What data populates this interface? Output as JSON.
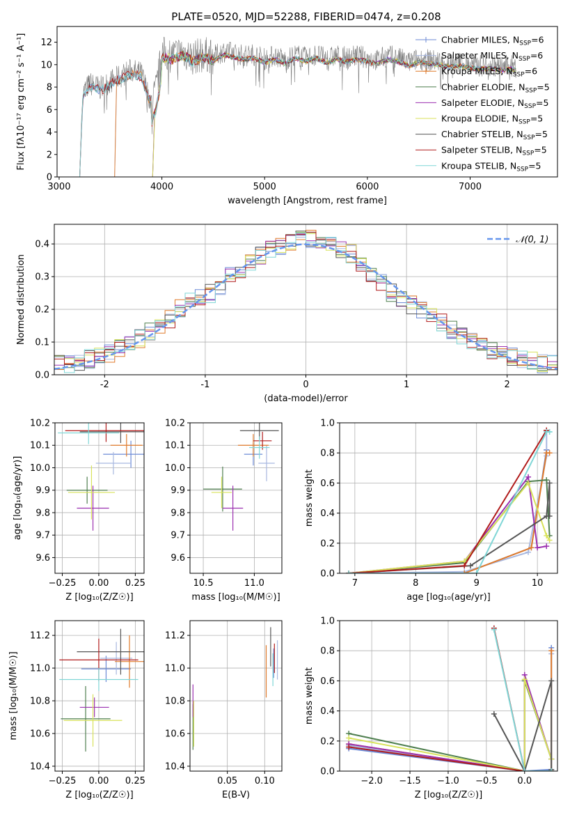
{
  "figure": {
    "title": "PLATE=0520, MJD=52288, FIBERID=0474, z=0.208"
  },
  "colors": {
    "Chabrier MILES": "#6b8ad6",
    "Salpeter MILES": "#a8b8e0",
    "Kroupa MILES": "#e07a2a",
    "Chabrier ELODIE": "#4f7f4f",
    "Salpeter ELODIE": "#9b30b0",
    "Kroupa ELODIE": "#d8e25a",
    "Chabrier STELIB": "#555555",
    "Salpeter STELIB": "#b01a1a",
    "Kroupa STELIB": "#7fd6d6",
    "gauss": "#6495ed",
    "grid": "#b0b0b0"
  },
  "chart_data": [
    {
      "id": "spectrum",
      "type": "line",
      "xlabel": "wavelength [Angstrom, rest frame]",
      "ylabel": "Flux [fλ10⁻¹⁷ erg cm⁻² s⁻¹ A⁻¹]",
      "xlim": [
        2980,
        7850
      ],
      "ylim": [
        0,
        13.4
      ],
      "xticks": [
        3000,
        4000,
        5000,
        6000,
        7000
      ],
      "yticks": [
        0,
        2,
        4,
        6,
        8,
        10,
        12
      ],
      "grid": false,
      "legend": "right",
      "observed": {
        "x": [
          3200,
          3230,
          3300,
          3400,
          3500,
          3600,
          3700,
          3800,
          3900,
          3950,
          4000,
          4100,
          4200,
          4300,
          4400,
          4500,
          4600,
          4700,
          4800,
          4900,
          5000,
          5100,
          5200,
          5300,
          5400,
          5500,
          5600,
          5700,
          5800,
          5900,
          6000,
          6100,
          6200,
          6300,
          6400,
          6500,
          6600,
          6700,
          6800,
          6900,
          7000,
          7100,
          7200,
          7300,
          7400,
          7450
        ],
        "y": [
          0,
          7.5,
          8.3,
          7.9,
          8.5,
          9.0,
          9.5,
          9.2,
          6.5,
          8.0,
          11.0,
          10.8,
          11.2,
          10.6,
          11.0,
          10.7,
          11.2,
          11.0,
          10.8,
          10.9,
          10.5,
          10.8,
          10.4,
          10.9,
          10.6,
          10.9,
          10.5,
          10.8,
          10.6,
          10.8,
          10.6,
          10.4,
          10.8,
          10.6,
          10.2,
          10.5,
          10.4,
          10.3,
          10.1,
          10.2,
          10.0,
          9.9,
          10.0,
          9.8,
          9.9,
          9.7
        ]
      },
      "series": [
        {
          "name": "Chabrier MILES, N_SSP=6",
          "start": 3200
        },
        {
          "name": "Salpeter MILES, N_SSP=6",
          "start": 3540
        },
        {
          "name": "Kroupa MILES, N_SSP=6",
          "start": 3540
        },
        {
          "name": "Chabrier ELODIE, N_SSP=5",
          "start": 3910
        },
        {
          "name": "Salpeter ELODIE, N_SSP=5",
          "start": 3910
        },
        {
          "name": "Kroupa ELODIE, N_SSP=5",
          "start": 3910
        },
        {
          "name": "Chabrier STELIB, N_SSP=5",
          "start": 3200
        },
        {
          "name": "Salpeter STELIB, N_SSP=5",
          "start": 3200
        },
        {
          "name": "Kroupa STELIB, N_SSP=5",
          "start": 3200
        }
      ]
    },
    {
      "id": "residuals",
      "type": "histogram",
      "xlabel": "(data-model)/error",
      "ylabel": "Normed distribution",
      "xlim": [
        -2.5,
        2.5
      ],
      "ylim": [
        0,
        0.46
      ],
      "xticks": [
        -2,
        -1,
        0,
        1,
        2
      ],
      "yticks": [
        0,
        0.1,
        0.2,
        0.3,
        0.4
      ],
      "grid": true,
      "legend": "top-right",
      "gauss_label": "𝒩(0, 1)",
      "bin_edges": [
        -2.5,
        -2.4,
        -2.3,
        -2.2,
        -2.1,
        -2.0,
        -1.9,
        -1.8,
        -1.7,
        -1.6,
        -1.5,
        -1.4,
        -1.3,
        -1.2,
        -1.1,
        -1.0,
        -0.9,
        -0.8,
        -0.7,
        -0.6,
        -0.5,
        -0.4,
        -0.3,
        -0.2,
        -0.1,
        0.0,
        0.1,
        0.2,
        0.3,
        0.4,
        0.5,
        0.6,
        0.7,
        0.8,
        0.9,
        1.0,
        1.1,
        1.2,
        1.3,
        1.4,
        1.5,
        1.6,
        1.7,
        1.8,
        1.9,
        2.0,
        2.1,
        2.2,
        2.3,
        2.4,
        2.5
      ],
      "density": [
        0.03,
        0.033,
        0.04,
        0.048,
        0.058,
        0.067,
        0.078,
        0.093,
        0.11,
        0.13,
        0.15,
        0.173,
        0.2,
        0.222,
        0.24,
        0.25,
        0.27,
        0.3,
        0.32,
        0.34,
        0.365,
        0.38,
        0.392,
        0.4,
        0.41,
        0.415,
        0.41,
        0.4,
        0.385,
        0.37,
        0.34,
        0.31,
        0.28,
        0.25,
        0.23,
        0.215,
        0.2,
        0.18,
        0.158,
        0.138,
        0.12,
        0.104,
        0.088,
        0.076,
        0.066,
        0.056,
        0.047,
        0.04,
        0.034,
        0.03
      ]
    },
    {
      "id": "age_vs_Z",
      "type": "errorbar",
      "xlabel": "Z [log₁₀(Z/Z☉)]",
      "ylabel": "age  [log₁₀(age/yr)]",
      "xlim": [
        -0.3,
        0.31
      ],
      "ylim": [
        9.53,
        10.2
      ],
      "xticks": [
        -0.25,
        0.0,
        0.25
      ],
      "xticklabels": [
        "−0.25",
        "0.00",
        "0.25"
      ],
      "yticks": [
        9.6,
        9.7,
        9.8,
        9.9,
        10.0,
        10.1,
        10.2
      ],
      "grid": true,
      "points": [
        {
          "s": 0,
          "x": 0.22,
          "xerr": 0.19,
          "y": 10.06,
          "yerr": 0.06
        },
        {
          "s": 1,
          "x": 0.1,
          "xerr": 0.12,
          "y": 10.02,
          "yerr": 0.05
        },
        {
          "s": 2,
          "x": 0.19,
          "xerr": 0.11,
          "y": 10.1,
          "yerr": 0.05
        },
        {
          "s": 3,
          "x": -0.08,
          "xerr": 0.14,
          "y": 9.9,
          "yerr": 0.06
        },
        {
          "s": 4,
          "x": -0.04,
          "xerr": 0.11,
          "y": 9.82,
          "yerr": 0.1
        },
        {
          "s": 5,
          "x": -0.05,
          "xerr": 0.16,
          "y": 9.89,
          "yerr": 0.12
        },
        {
          "s": 6,
          "x": 0.15,
          "xerr": 0.28,
          "y": 10.16,
          "yerr": 0.05
        },
        {
          "s": 7,
          "x": 0.05,
          "xerr": 0.28,
          "y": 10.165,
          "yerr": 0.05
        },
        {
          "s": 8,
          "x": -0.07,
          "xerr": 0.21,
          "y": 10.155,
          "yerr": 0.05
        }
      ]
    },
    {
      "id": "age_vs_mass",
      "type": "errorbar",
      "xlabel": "mass [log₁₀(M/M☉)]",
      "ylabel": "",
      "xlim": [
        10.37,
        11.27
      ],
      "ylim": [
        9.53,
        10.2
      ],
      "xticks": [
        10.5,
        11.0
      ],
      "yticks": [
        9.6,
        9.7,
        9.8,
        9.9,
        10.0,
        10.1,
        10.2
      ],
      "grid": true,
      "points": [
        {
          "s": 0,
          "x": 10.99,
          "xerr": 0.09,
          "y": 10.06,
          "yerr": 0.05
        },
        {
          "s": 1,
          "x": 11.12,
          "xerr": 0.08,
          "y": 10.02,
          "yerr": 0.08
        },
        {
          "s": 2,
          "x": 10.99,
          "xerr": 0.15,
          "y": 10.1,
          "yerr": 0.05
        },
        {
          "s": 3,
          "x": 10.69,
          "xerr": 0.19,
          "y": 9.905,
          "yerr": 0.1
        },
        {
          "s": 4,
          "x": 10.79,
          "xerr": 0.1,
          "y": 9.82,
          "yerr": 0.1
        },
        {
          "s": 5,
          "x": 10.68,
          "xerr": 0.1,
          "y": 9.89,
          "yerr": 0.07
        },
        {
          "s": 6,
          "x": 11.05,
          "xerr": 0.19,
          "y": 10.165,
          "yerr": 0.04
        },
        {
          "s": 7,
          "x": 11.08,
          "xerr": 0.09,
          "y": 10.12,
          "yerr": 0.04
        },
        {
          "s": 8,
          "x": 11.05,
          "xerr": 0.1,
          "y": 10.09,
          "yerr": 0.05
        }
      ]
    },
    {
      "id": "weight_vs_age",
      "type": "line",
      "xlabel": "age  [log₁₀(age/yr)]",
      "ylabel": "mass weight",
      "xlim": [
        6.75,
        10.33
      ],
      "ylim": [
        0,
        1.0
      ],
      "xticks": [
        7,
        8,
        9,
        10
      ],
      "yticks": [
        0.0,
        0.2,
        0.4,
        0.6,
        0.8,
        1.0
      ],
      "grid": true,
      "series": [
        {
          "s": 0,
          "x": [
            6.9,
            8.8,
            9.9,
            10.15,
            10.15
          ],
          "y": [
            0.0,
            0.0,
            0.17,
            0.82,
            0.82
          ]
        },
        {
          "s": 1,
          "x": [
            6.9,
            8.8,
            9.85,
            10.15,
            10.15
          ],
          "y": [
            0.0,
            0.01,
            0.14,
            0.78,
            0.94
          ]
        },
        {
          "s": 2,
          "x": [
            6.9,
            8.8,
            9.9,
            10.15,
            10.2
          ],
          "y": [
            0.0,
            0.0,
            0.17,
            0.8,
            0.8
          ]
        },
        {
          "s": 3,
          "x": [
            6.9,
            8.8,
            9.85,
            10.15,
            10.2
          ],
          "y": [
            0.0,
            0.07,
            0.61,
            0.62,
            0.25
          ]
        },
        {
          "s": 4,
          "x": [
            6.9,
            8.8,
            9.85,
            10.0,
            10.15
          ],
          "y": [
            0.0,
            0.08,
            0.64,
            0.17,
            0.18
          ]
        },
        {
          "s": 5,
          "x": [
            6.9,
            8.8,
            9.85,
            10.15,
            10.2
          ],
          "y": [
            0.0,
            0.08,
            0.6,
            0.25,
            0.22
          ]
        },
        {
          "s": 6,
          "x": [
            6.9,
            8.9,
            10.15,
            10.2,
            10.2
          ],
          "y": [
            0.0,
            0.05,
            0.38,
            0.6,
            0.38
          ]
        },
        {
          "s": 7,
          "x": [
            6.9,
            8.8,
            10.15,
            10.15,
            10.15
          ],
          "y": [
            0.0,
            0.05,
            0.95,
            0.95,
            0.95
          ]
        },
        {
          "s": 8,
          "x": [
            6.9,
            9.0,
            10.15,
            10.2,
            10.2
          ],
          "y": [
            0.0,
            0.0,
            0.94,
            0.94,
            0.94
          ]
        }
      ]
    },
    {
      "id": "mass_vs_Z",
      "type": "errorbar",
      "xlabel": "Z [log₁₀(Z/Z☉)]",
      "ylabel": "mass [log₁₀(M/M☉)]",
      "xlim": [
        -0.3,
        0.31
      ],
      "ylim": [
        10.37,
        11.29
      ],
      "xticks": [
        -0.25,
        0.0,
        0.25
      ],
      "xticklabels": [
        "−0.25",
        "0.00",
        "0.25"
      ],
      "yticks": [
        10.4,
        10.6,
        10.8,
        11.0,
        11.2
      ],
      "grid": true,
      "points": [
        {
          "s": 0,
          "x": 0.05,
          "xerr": 0.17,
          "y": 10.995,
          "yerr": 0.08
        },
        {
          "s": 1,
          "x": 0.12,
          "xerr": 0.11,
          "y": 11.06,
          "yerr": 0.1
        },
        {
          "s": 2,
          "x": 0.21,
          "xerr": 0.1,
          "y": 11.04,
          "yerr": 0.16
        },
        {
          "s": 3,
          "x": -0.09,
          "xerr": 0.17,
          "y": 10.69,
          "yerr": 0.2
        },
        {
          "s": 4,
          "x": -0.03,
          "xerr": 0.1,
          "y": 10.76,
          "yerr": 0.06
        },
        {
          "s": 5,
          "x": -0.04,
          "xerr": 0.2,
          "y": 10.68,
          "yerr": 0.16
        },
        {
          "s": 6,
          "x": 0.15,
          "xerr": 0.3,
          "y": 11.1,
          "yerr": 0.14
        },
        {
          "s": 7,
          "x": 0.0,
          "xerr": 0.27,
          "y": 11.05,
          "yerr": 0.13
        },
        {
          "s": 8,
          "x": 0.0,
          "xerr": 0.27,
          "y": 10.93,
          "yerr": 0.07
        }
      ]
    },
    {
      "id": "mass_vs_ebv",
      "type": "errorbar",
      "xlabel": "E(B-V)",
      "ylabel": "",
      "xlim": [
        0.0,
        0.123
      ],
      "ylim": [
        10.37,
        11.29
      ],
      "xticks": [
        0.05,
        0.1
      ],
      "yticks": [
        10.4,
        10.6,
        10.8,
        11.0,
        11.2
      ],
      "grid": true,
      "points": [
        {
          "s": 0,
          "x": 0.112,
          "xerr": 0,
          "y": 11.03,
          "yerr": 0.09
        },
        {
          "s": 1,
          "x": 0.117,
          "xerr": 0,
          "y": 11.05,
          "yerr": 0.12
        },
        {
          "s": 2,
          "x": 0.102,
          "xerr": 0,
          "y": 10.98,
          "yerr": 0.16
        },
        {
          "s": 3,
          "x": 0.004,
          "xerr": 0,
          "y": 10.64,
          "yerr": 0.14
        },
        {
          "s": 4,
          "x": 0.004,
          "xerr": 0,
          "y": 10.8,
          "yerr": 0.1
        },
        {
          "s": 5,
          "x": 0.005,
          "xerr": 0,
          "y": 10.66,
          "yerr": 0.14
        },
        {
          "s": 6,
          "x": 0.108,
          "xerr": 0,
          "y": 11.13,
          "yerr": 0.12
        },
        {
          "s": 7,
          "x": 0.113,
          "xerr": 0,
          "y": 11.06,
          "yerr": 0.09
        },
        {
          "s": 8,
          "x": 0.111,
          "xerr": 0,
          "y": 10.99,
          "yerr": 0.1
        }
      ]
    },
    {
      "id": "weight_vs_Z",
      "type": "line",
      "xlabel": "Z [log₁₀(Z/Z☉)]",
      "ylabel": "mass weight",
      "xlim": [
        -2.42,
        0.43
      ],
      "ylim": [
        0,
        1.0
      ],
      "xticks": [
        -2.0,
        -1.5,
        -1.0,
        -0.5,
        0.0
      ],
      "xticklabels": [
        "−2.0",
        "−1.5",
        "−1.0",
        "−0.5",
        "0.0"
      ],
      "yticks": [
        0.0,
        0.2,
        0.4,
        0.6,
        0.8,
        1.0
      ],
      "grid": true,
      "series": [
        {
          "s": 0,
          "x": [
            -2.3,
            0.0,
            0.35,
            0.35
          ],
          "y": [
            0.15,
            0.0,
            0.01,
            0.82
          ]
        },
        {
          "s": 1,
          "x": [
            -2.3,
            0.0,
            0.35,
            0.35
          ],
          "y": [
            0.17,
            0.0,
            0.0,
            0.78
          ]
        },
        {
          "s": 2,
          "x": [
            -2.3,
            0.0,
            0.35,
            0.35
          ],
          "y": [
            0.18,
            0.0,
            0.0,
            0.8
          ]
        },
        {
          "s": 3,
          "x": [
            -2.3,
            0.0,
            0.0,
            0.35,
            0.35
          ],
          "y": [
            0.25,
            0.0,
            0.6,
            0.08,
            0.08
          ]
        },
        {
          "s": 4,
          "x": [
            -2.3,
            0.0,
            0.0,
            0.35
          ],
          "y": [
            0.18,
            0.0,
            0.64,
            0.08
          ]
        },
        {
          "s": 5,
          "x": [
            -2.3,
            0.0,
            0.0,
            0.35
          ],
          "y": [
            0.22,
            0.0,
            0.61,
            0.08
          ]
        },
        {
          "s": 6,
          "x": [
            -0.4,
            0.0,
            0.35,
            0.35
          ],
          "y": [
            0.38,
            0.0,
            0.6,
            0.01
          ]
        },
        {
          "s": 7,
          "x": [
            -2.3,
            0.0,
            -0.4,
            0.0
          ],
          "y": [
            0.16,
            0.0,
            0.95,
            0.0
          ]
        },
        {
          "s": 8,
          "x": [
            -0.4,
            0.0,
            0.0,
            0.35
          ],
          "y": [
            0.94,
            0.0,
            0.0,
            0.0
          ]
        }
      ]
    }
  ]
}
